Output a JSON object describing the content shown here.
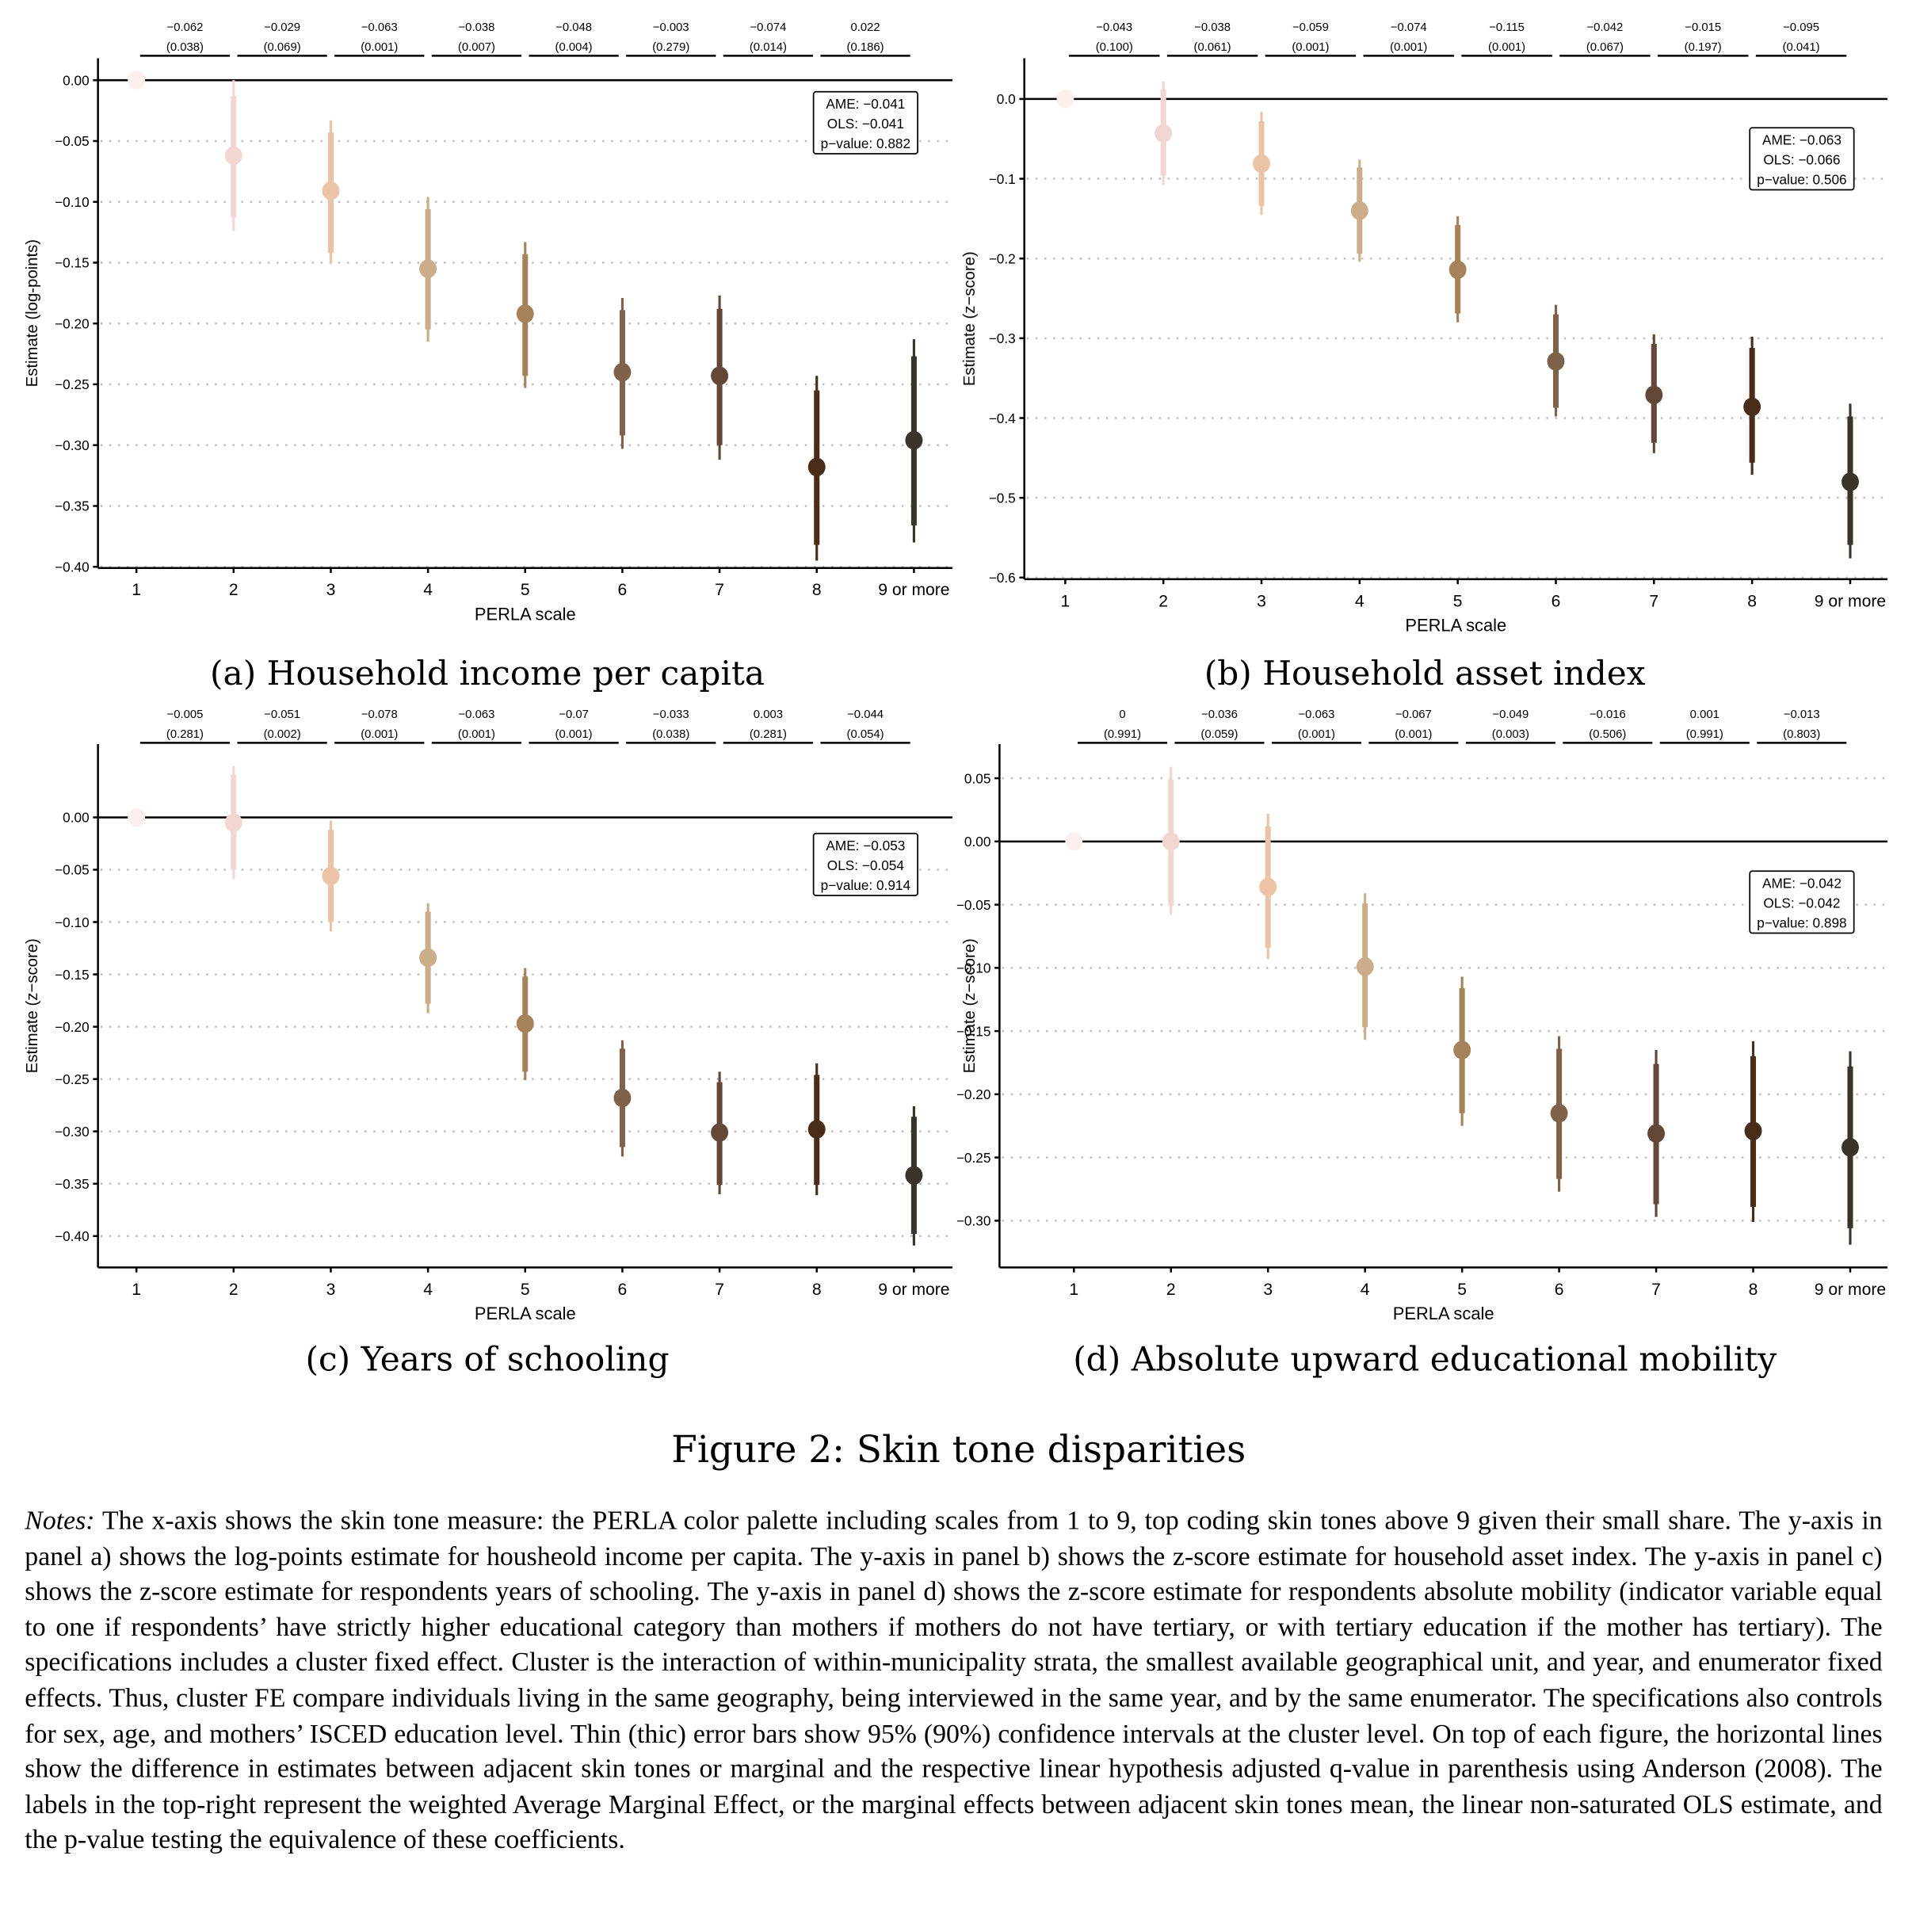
{
  "figure": {
    "title": "Figure 2: Skin tone disparities",
    "notes_label": "Notes:",
    "notes_text": "The x-axis shows the skin tone measure: the PERLA color palette including scales from 1 to 9, top coding skin tones above 9 given their small share. The y-axis in panel a) shows the log-points estimate for housheold income per capita. The y-axis in panel b) shows the z-score estimate for household asset index. The y-axis in panel c) shows the z-score estimate for respondents years of schooling. The y-axis in panel d) shows the z-score estimate for respondents absolute mobility (indicator variable equal to one if respondents’ have strictly higher educational category than mothers if mothers do not have tertiary, or with tertiary education if the mother has tertiary). The specifications includes a cluster fixed effect. Cluster is the interaction of within-municipality strata, the smallest available geographical unit, and year, and enumerator fixed effects. Thus, cluster FE compare individuals living in the same geography, being interviewed in the same year, and by the same enumerator. The specifications also controls for sex, age, and mothers’ ISCED education level. Thin (thic) error bars show 95% (90%) confidence intervals at the cluster level. On top of each figure, the horizontal lines show the difference in estimates between adjacent skin tones or marginal and the respective linear hypothesis adjusted q-value in parenthesis using Anderson (2008). The labels in the top-right represent the weighted Average Marginal Effect, or the marginal effects between adjacent skin tones mean, the linear non-saturated OLS estimate, and the p-value testing the equivalence of these coefficients."
  },
  "colors": {
    "tones": [
      "#FCEFEE",
      "#F1D6D1",
      "#EBC3A6",
      "#CBAD89",
      "#A6825A",
      "#80624B",
      "#634837",
      "#4A2D18",
      "#39332A"
    ],
    "axis": "#000000",
    "grid": "#BEBEBE"
  },
  "chart_data": [
    {
      "id": "a",
      "type": "scatter",
      "caption": "(a) Household income per capita",
      "xlabel": "PERLA scale",
      "ylabel": "Estimate  (log-points)",
      "categories": [
        "1",
        "2",
        "3",
        "4",
        "5",
        "6",
        "7",
        "8",
        "9 or more"
      ],
      "yticks": [
        "0.00",
        "-0.05",
        "-0.10",
        "-0.15",
        "-0.20",
        "-0.25",
        "-0.30",
        "-0.35",
        "-0.40"
      ],
      "ytick_values": [
        0,
        -0.05,
        -0.1,
        -0.15,
        -0.2,
        -0.25,
        -0.3,
        -0.35,
        -0.4
      ],
      "ylim": [
        -0.401,
        0.018
      ],
      "grid": "horizontal dotted",
      "estimates": [
        0,
        -0.062,
        -0.091,
        -0.155,
        -0.192,
        -0.24,
        -0.243,
        -0.318,
        -0.296
      ],
      "ci95": [
        [
          0,
          0
        ],
        [
          -0.124,
          0.0
        ],
        [
          -0.151,
          -0.033
        ],
        [
          -0.215,
          -0.096
        ],
        [
          -0.253,
          -0.133
        ],
        [
          -0.303,
          -0.179
        ],
        [
          -0.312,
          -0.177
        ],
        [
          -0.395,
          -0.243
        ],
        [
          -0.38,
          -0.213
        ]
      ],
      "ci90": [
        [
          0,
          0
        ],
        [
          -0.113,
          -0.013
        ],
        [
          -0.142,
          -0.043
        ],
        [
          -0.205,
          -0.106
        ],
        [
          -0.243,
          -0.143
        ],
        [
          -0.292,
          -0.189
        ],
        [
          -0.3,
          -0.188
        ],
        [
          -0.382,
          -0.255
        ],
        [
          -0.366,
          -0.227
        ]
      ],
      "differences": [
        {
          "diff": "−0.062",
          "q": "(0.038)"
        },
        {
          "diff": "−0.029",
          "q": "(0.069)"
        },
        {
          "diff": "−0.063",
          "q": "(0.001)"
        },
        {
          "diff": "−0.038",
          "q": "(0.007)"
        },
        {
          "diff": "−0.048",
          "q": "(0.004)"
        },
        {
          "diff": "−0.003",
          "q": "(0.279)"
        },
        {
          "diff": "−0.074",
          "q": "(0.014)"
        },
        {
          "diff": "0.022",
          "q": "(0.186)"
        }
      ],
      "summary": {
        "ame": "AME: −0.041",
        "ols": "OLS: −0.041",
        "pvalue": "p−value: 0.882"
      },
      "summary_anchor_value": -0.035
    },
    {
      "id": "b",
      "type": "scatter",
      "caption": "(b) Household asset index",
      "xlabel": "PERLA scale",
      "ylabel": "Estimate  (z−score)",
      "categories": [
        "1",
        "2",
        "3",
        "4",
        "5",
        "6",
        "7",
        "8",
        "9 or more"
      ],
      "yticks": [
        "0.0",
        "-0.1",
        "-0.2",
        "-0.3",
        "-0.4",
        "-0.5",
        "-0.6"
      ],
      "ytick_values": [
        0,
        -0.1,
        -0.2,
        -0.3,
        -0.4,
        -0.5,
        -0.6
      ],
      "ylim": [
        -0.602,
        0.051
      ],
      "grid": "horizontal dotted",
      "estimates": [
        0,
        -0.043,
        -0.081,
        -0.14,
        -0.214,
        -0.329,
        -0.371,
        -0.386,
        -0.48
      ],
      "ci95": [
        [
          0,
          0
        ],
        [
          -0.108,
          0.022
        ],
        [
          -0.145,
          -0.016
        ],
        [
          -0.204,
          -0.076
        ],
        [
          -0.28,
          -0.147
        ],
        [
          -0.398,
          -0.258
        ],
        [
          -0.444,
          -0.295
        ],
        [
          -0.471,
          -0.298
        ],
        [
          -0.576,
          -0.382
        ]
      ],
      "ci90": [
        [
          0,
          0
        ],
        [
          -0.096,
          0.012
        ],
        [
          -0.134,
          -0.028
        ],
        [
          -0.194,
          -0.086
        ],
        [
          -0.269,
          -0.158
        ],
        [
          -0.387,
          -0.27
        ],
        [
          -0.431,
          -0.307
        ],
        [
          -0.456,
          -0.312
        ],
        [
          -0.559,
          -0.398
        ]
      ],
      "differences": [
        {
          "diff": "−0.043",
          "q": "(0.100)"
        },
        {
          "diff": "−0.038",
          "q": "(0.061)"
        },
        {
          "diff": "−0.059",
          "q": "(0.001)"
        },
        {
          "diff": "−0.074",
          "q": "(0.001)"
        },
        {
          "diff": "−0.115",
          "q": "(0.001)"
        },
        {
          "diff": "−0.042",
          "q": "(0.067)"
        },
        {
          "diff": "−0.015",
          "q": "(0.197)"
        },
        {
          "diff": "−0.095",
          "q": "(0.041)"
        }
      ],
      "summary": {
        "ame": "AME: −0.063",
        "ols": "OLS: −0.066",
        "pvalue": "p−value: 0.506"
      },
      "summary_anchor_value": -0.075
    },
    {
      "id": "c",
      "type": "scatter",
      "caption": "(c) Years of schooling",
      "xlabel": "PERLA scale",
      "ylabel": "Estimate  (z−score)",
      "categories": [
        "1",
        "2",
        "3",
        "4",
        "5",
        "6",
        "7",
        "8",
        "9 or more"
      ],
      "yticks": [
        "0.00",
        "-0.05",
        "-0.10",
        "-0.15",
        "-0.20",
        "-0.25",
        "-0.30",
        "-0.35",
        "-0.40"
      ],
      "ytick_values": [
        0,
        -0.05,
        -0.1,
        -0.15,
        -0.2,
        -0.25,
        -0.3,
        -0.35,
        -0.4
      ],
      "ylim": [
        -0.43,
        0.07
      ],
      "grid": "horizontal dotted",
      "estimates": [
        0,
        -0.005,
        -0.056,
        -0.134,
        -0.197,
        -0.268,
        -0.301,
        -0.298,
        -0.342
      ],
      "ci95": [
        [
          0,
          0
        ],
        [
          -0.059,
          0.049
        ],
        [
          -0.109,
          -0.003
        ],
        [
          -0.187,
          -0.082
        ],
        [
          -0.251,
          -0.144
        ],
        [
          -0.324,
          -0.213
        ],
        [
          -0.36,
          -0.243
        ],
        [
          -0.361,
          -0.235
        ],
        [
          -0.409,
          -0.276
        ]
      ],
      "ci90": [
        [
          0,
          0
        ],
        [
          -0.05,
          0.041
        ],
        [
          -0.1,
          -0.012
        ],
        [
          -0.178,
          -0.09
        ],
        [
          -0.243,
          -0.152
        ],
        [
          -0.315,
          -0.221
        ],
        [
          -0.351,
          -0.253
        ],
        [
          -0.351,
          -0.246
        ],
        [
          -0.398,
          -0.286
        ]
      ],
      "differences": [
        {
          "diff": "−0.005",
          "q": "(0.281)"
        },
        {
          "diff": "−0.051",
          "q": "(0.002)"
        },
        {
          "diff": "−0.078",
          "q": "(0.001)"
        },
        {
          "diff": "−0.063",
          "q": "(0.001)"
        },
        {
          "diff": "−0.07",
          "q": "(0.001)"
        },
        {
          "diff": "−0.033",
          "q": "(0.038)"
        },
        {
          "diff": "0.003",
          "q": "(0.281)"
        },
        {
          "diff": "−0.044",
          "q": "(0.054)"
        }
      ],
      "summary": {
        "ame": "AME: −0.053",
        "ols": "OLS: −0.054",
        "pvalue": "p−value: 0.914"
      },
      "summary_anchor_value": -0.045
    },
    {
      "id": "d",
      "type": "scatter",
      "caption": "(d) Absolute upward educational mobility",
      "xlabel": "PERLA scale",
      "ylabel": "Estimate  (z−score)",
      "categories": [
        "1",
        "2",
        "3",
        "4",
        "5",
        "6",
        "7",
        "8",
        "9 or more"
      ],
      "yticks": [
        "0.05",
        "0.00",
        "-0.05",
        "-0.10",
        "-0.15",
        "-0.20",
        "-0.25",
        "-0.30"
      ],
      "ytick_values": [
        0.05,
        0,
        -0.05,
        -0.1,
        -0.15,
        -0.2,
        -0.25,
        -0.3
      ],
      "ylim": [
        -0.337,
        0.077
      ],
      "grid": "horizontal dotted",
      "estimates": [
        0,
        0.0,
        -0.036,
        -0.099,
        -0.165,
        -0.215,
        -0.231,
        -0.229,
        -0.242
      ],
      "ci95": [
        [
          0,
          0
        ],
        [
          -0.058,
          0.059
        ],
        [
          -0.093,
          0.022
        ],
        [
          -0.157,
          -0.041
        ],
        [
          -0.225,
          -0.107
        ],
        [
          -0.277,
          -0.154
        ],
        [
          -0.297,
          -0.165
        ],
        [
          -0.301,
          -0.158
        ],
        [
          -0.319,
          -0.166
        ]
      ],
      "ci90": [
        [
          0,
          0
        ],
        [
          -0.051,
          0.049
        ],
        [
          -0.084,
          0.012
        ],
        [
          -0.147,
          -0.049
        ],
        [
          -0.215,
          -0.116
        ],
        [
          -0.267,
          -0.164
        ],
        [
          -0.287,
          -0.176
        ],
        [
          -0.289,
          -0.17
        ],
        [
          -0.306,
          -0.178
        ]
      ],
      "differences": [
        {
          "diff": "0",
          "q": "(0.991)"
        },
        {
          "diff": "−0.036",
          "q": "(0.059)"
        },
        {
          "diff": "−0.063",
          "q": "(0.001)"
        },
        {
          "diff": "−0.067",
          "q": "(0.001)"
        },
        {
          "diff": "−0.049",
          "q": "(0.003)"
        },
        {
          "diff": "−0.016",
          "q": "(0.506)"
        },
        {
          "diff": "0.001",
          "q": "(0.991)"
        },
        {
          "diff": "−0.013",
          "q": "(0.803)"
        }
      ],
      "summary": {
        "ame": "AME: −0.042",
        "ols": "OLS: −0.042",
        "pvalue": "p−value: 0.898"
      },
      "summary_anchor_value": -0.048
    }
  ]
}
